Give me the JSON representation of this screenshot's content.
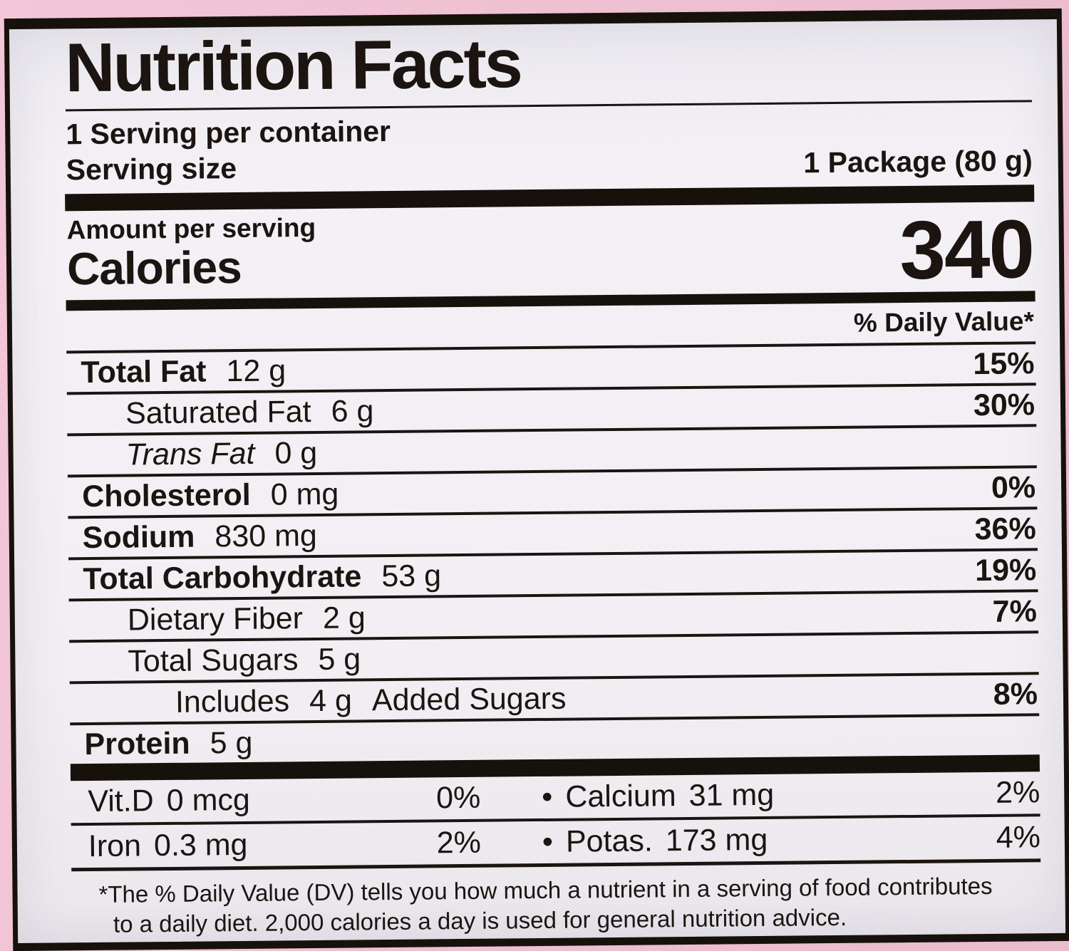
{
  "label": {
    "title": "Nutrition Facts",
    "servings_per_container": "1 Serving per container",
    "serving_size_label": "Serving size",
    "serving_size_value": "1 Package (80 g)",
    "amount_per_serving": "Amount per serving",
    "calories_label": "Calories",
    "calories_value": "340",
    "daily_value_header": "% Daily Value*",
    "bullet": "•",
    "nutrients": [
      {
        "name": "Total Fat",
        "amount": "12 g",
        "dv": "15%"
      },
      {
        "name": "Saturated Fat",
        "amount": "6 g",
        "dv": "30%"
      },
      {
        "name": "Trans Fat",
        "amount": "0 g",
        "dv": ""
      },
      {
        "name": "Cholesterol",
        "amount": "0 mg",
        "dv": "0%"
      },
      {
        "name": "Sodium",
        "amount": "830 mg",
        "dv": "36%"
      },
      {
        "name": "Total Carbohydrate",
        "amount": "53 g",
        "dv": "19%"
      },
      {
        "name": "Dietary Fiber",
        "amount": "2 g",
        "dv": "7%"
      },
      {
        "name": "Total Sugars",
        "amount": "5 g",
        "dv": ""
      },
      {
        "name": "Includes",
        "amount": "4 g",
        "suffix": "Added Sugars",
        "dv": "8%"
      },
      {
        "name": "Protein",
        "amount": "5 g",
        "dv": ""
      }
    ],
    "micronutrients": [
      {
        "left_name": "Vit.D",
        "left_amount": "0 mcg",
        "left_dv": "0%",
        "right_name": "Calcium",
        "right_amount": "31 mg",
        "right_dv": "2%"
      },
      {
        "left_name": "Iron",
        "left_amount": "0.3 mg",
        "left_dv": "2%",
        "right_name": "Potas.",
        "right_amount": "173 mg",
        "right_dv": "4%"
      }
    ],
    "footnote_line1": "*The % Daily Value (DV) tells you how much a nutrient in a serving of food contributes",
    "footnote_line2": "to a daily diet. 2,000 calories a day is used for general nutrition advice.",
    "colors": {
      "background_pink": "#eec0d2",
      "label_white": "#f1eff3",
      "ink": "#1b1410"
    }
  }
}
